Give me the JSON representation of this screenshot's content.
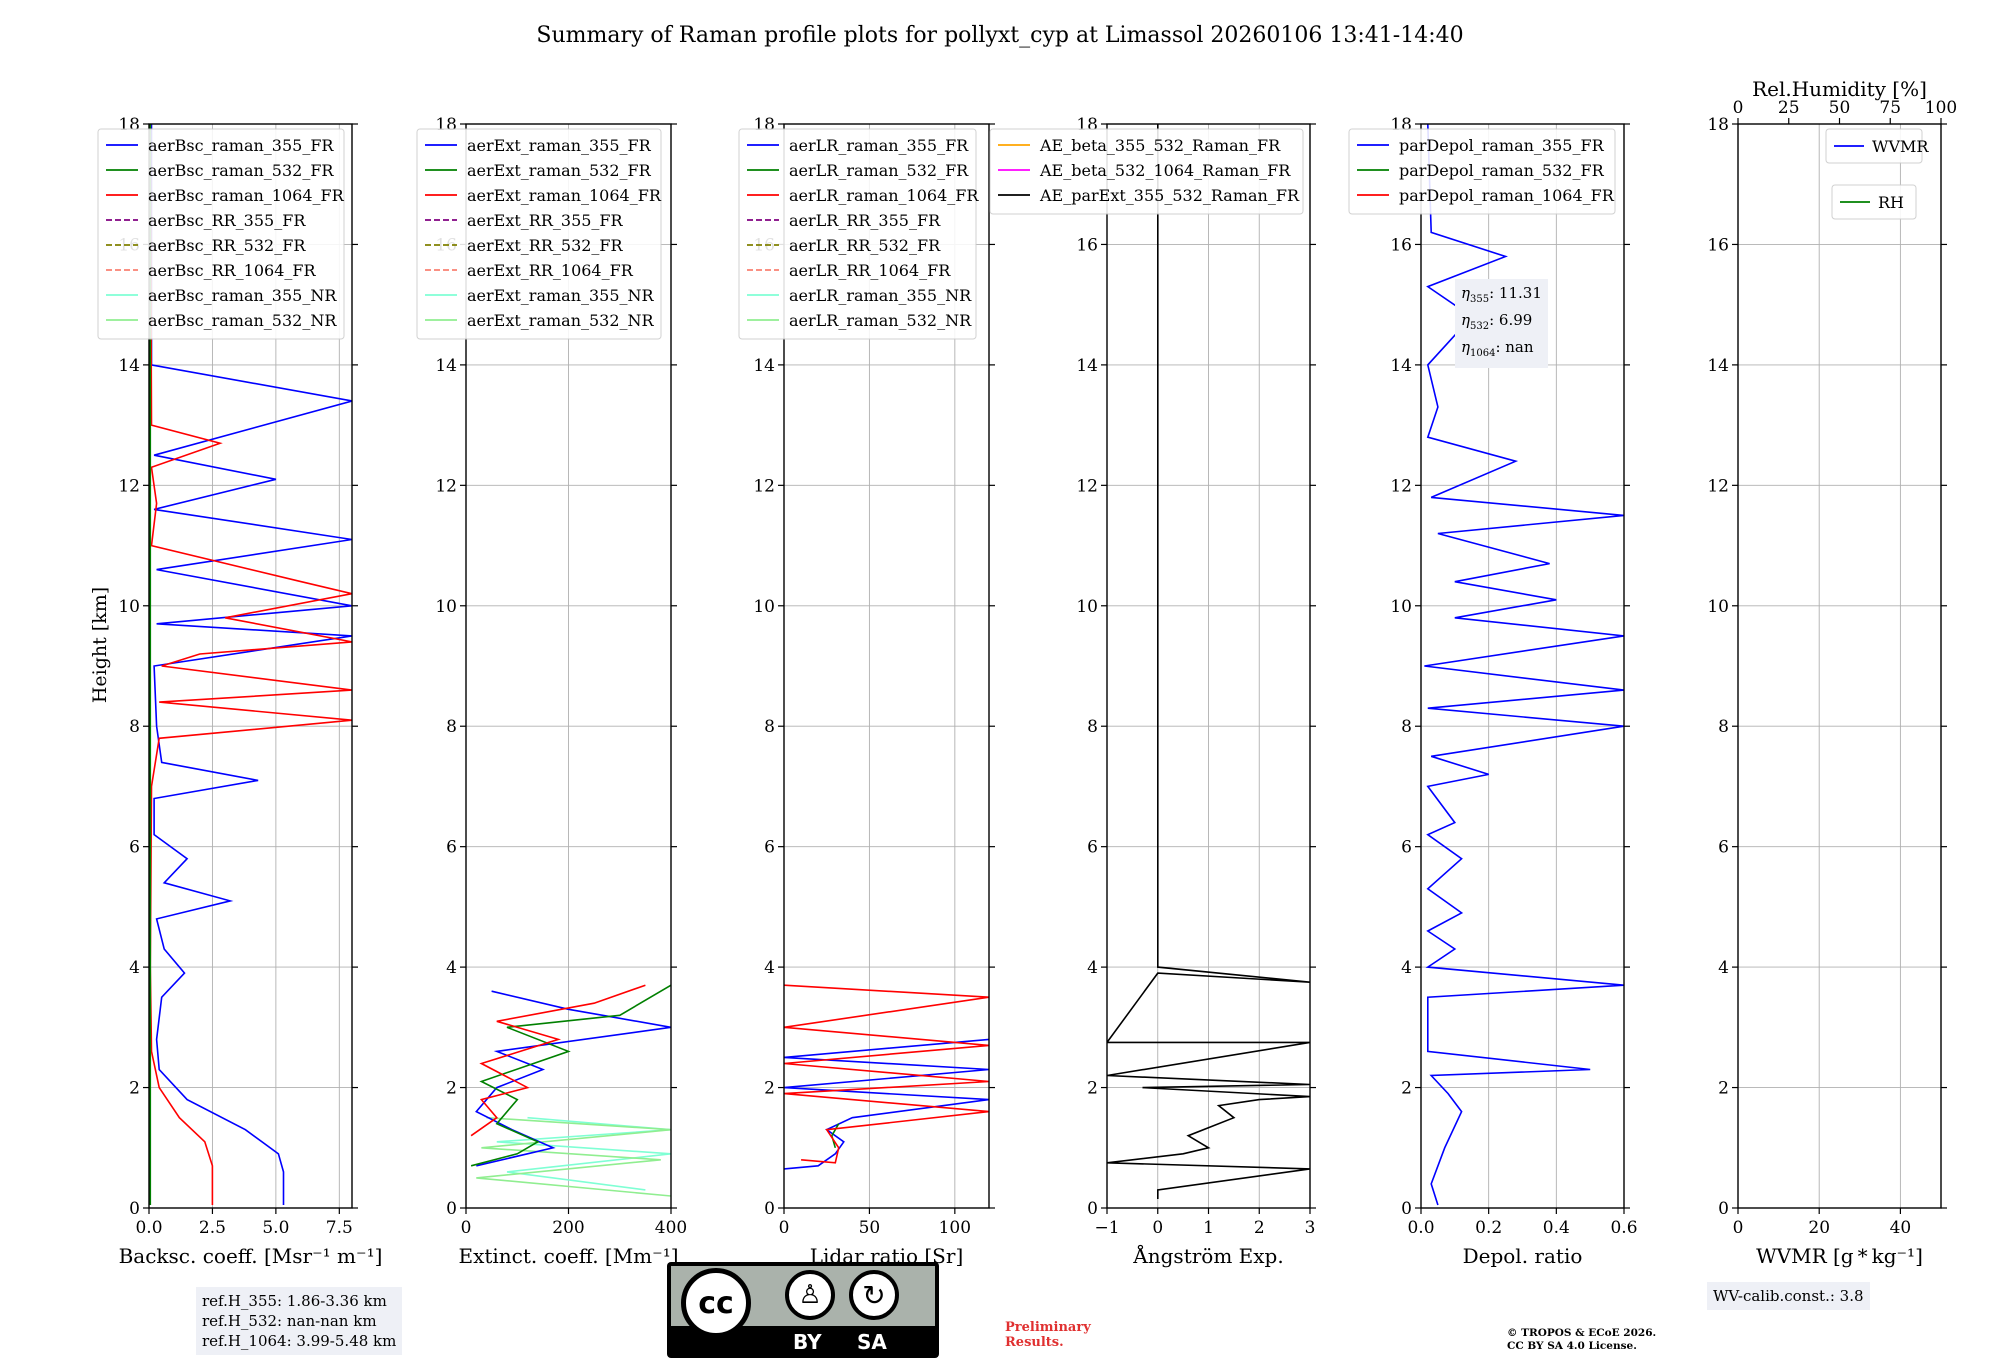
{
  "figure_title": "Summary of Raman profile plots for pollyxt_cyp at Limassol 20260106 13:41-14:40",
  "y_axis_label": "Height [km]",
  "y_ticks": [
    "0",
    "2",
    "4",
    "6",
    "8",
    "10",
    "12",
    "14",
    "16",
    "18"
  ],
  "colors": {
    "blue": "#0000ff",
    "green": "#008000",
    "red": "#ff0000",
    "purple": "#800080",
    "olive": "#808000",
    "salmon": "#fa8072",
    "cyan": "#7fffd4",
    "lightgreen": "#90ee90",
    "orange": "#ffa500",
    "magenta": "#ff00ff",
    "black": "#000000"
  },
  "chart_data": [
    {
      "type": "line",
      "xlabel": "Backsc. coeff. [Msr⁻¹ m⁻¹]",
      "xlim": [
        0,
        8
      ],
      "ylim": [
        0,
        18
      ],
      "x_ticks": [
        "0.0",
        "2.5",
        "5.0",
        "7.5"
      ],
      "legend": [
        "aerBsc_raman_355_FR",
        "aerBsc_raman_532_FR",
        "aerBsc_raman_1064_FR",
        "aerBsc_RR_355_FR",
        "aerBsc_RR_532_FR",
        "aerBsc_RR_1064_FR",
        "aerBsc_raman_355_NR",
        "aerBsc_raman_532_NR"
      ],
      "series": [
        {
          "name": "aerBsc_raman_355_FR",
          "points": [
            [
              5.3,
              0.05
            ],
            [
              5.3,
              0.6
            ],
            [
              5.1,
              0.9
            ],
            [
              3.8,
              1.3
            ],
            [
              1.5,
              1.8
            ],
            [
              0.4,
              2.3
            ],
            [
              0.3,
              2.8
            ],
            [
              0.5,
              3.5
            ],
            [
              1.4,
              3.9
            ],
            [
              0.6,
              4.3
            ],
            [
              0.3,
              4.8
            ],
            [
              3.2,
              5.1
            ],
            [
              0.6,
              5.4
            ],
            [
              1.5,
              5.8
            ],
            [
              0.2,
              6.2
            ],
            [
              0.2,
              6.8
            ],
            [
              4.3,
              7.1
            ],
            [
              0.5,
              7.4
            ],
            [
              0.3,
              8.0
            ],
            [
              0.2,
              9.0
            ],
            [
              8,
              9.5
            ],
            [
              0.3,
              9.7
            ],
            [
              8,
              10.0
            ],
            [
              0.3,
              10.6
            ],
            [
              8,
              11.1
            ],
            [
              0.2,
              11.6
            ],
            [
              5,
              12.1
            ],
            [
              0.2,
              12.5
            ],
            [
              8,
              13.4
            ],
            [
              0.1,
              14.0
            ],
            [
              0.1,
              18.0
            ]
          ]
        },
        {
          "name": "aerBsc_raman_1064_FR",
          "points": [
            [
              2.5,
              0.05
            ],
            [
              2.5,
              0.7
            ],
            [
              2.2,
              1.1
            ],
            [
              1.2,
              1.5
            ],
            [
              0.4,
              2.0
            ],
            [
              0.1,
              2.6
            ],
            [
              0.05,
              4.0
            ],
            [
              0.1,
              7.0
            ],
            [
              0.4,
              7.8
            ],
            [
              8,
              8.1
            ],
            [
              0.4,
              8.4
            ],
            [
              8,
              8.6
            ],
            [
              0.5,
              9.0
            ],
            [
              2,
              9.2
            ],
            [
              8,
              9.4
            ],
            [
              3,
              9.8
            ],
            [
              8,
              10.2
            ],
            [
              6,
              10.4
            ],
            [
              0.1,
              11.0
            ],
            [
              0.3,
              11.7
            ],
            [
              0.1,
              12.3
            ],
            [
              2.8,
              12.7
            ],
            [
              0.1,
              13.0
            ],
            [
              0.05,
              18.0
            ]
          ]
        },
        {
          "name": "aerBsc_raman_532_FR",
          "points": [
            [
              0.05,
              0.05
            ],
            [
              0.05,
              18.0
            ]
          ]
        }
      ]
    },
    {
      "type": "line",
      "xlabel": "Extinct. coeff. [Mm⁻¹]",
      "xlim": [
        0,
        400
      ],
      "ylim": [
        0,
        18
      ],
      "x_ticks": [
        "0",
        "200",
        "400"
      ],
      "legend": [
        "aerExt_raman_355_FR",
        "aerExt_raman_532_FR",
        "aerExt_raman_1064_FR",
        "aerExt_RR_355_FR",
        "aerExt_RR_532_FR",
        "aerExt_RR_1064_FR",
        "aerExt_raman_355_NR",
        "aerExt_raman_532_NR"
      ],
      "series": [
        {
          "name": "aerExt_raman_355_NR",
          "points": [
            [
              350,
              0.3
            ],
            [
              80,
              0.6
            ],
            [
              400,
              0.9
            ],
            [
              60,
              1.1
            ],
            [
              400,
              1.3
            ],
            [
              120,
              1.5
            ]
          ]
        },
        {
          "name": "aerExt_raman_532_NR",
          "points": [
            [
              400,
              0.2
            ],
            [
              20,
              0.5
            ],
            [
              380,
              0.8
            ],
            [
              30,
              1.0
            ],
            [
              400,
              1.3
            ],
            [
              40,
              1.5
            ]
          ]
        },
        {
          "name": "aerExt_raman_355_FR",
          "points": [
            [
              20,
              0.7
            ],
            [
              120,
              0.9
            ],
            [
              170,
              1.0
            ],
            [
              90,
              1.3
            ],
            [
              20,
              1.6
            ],
            [
              60,
              2.0
            ],
            [
              150,
              2.3
            ],
            [
              60,
              2.6
            ],
            [
              400,
              3.0
            ],
            [
              200,
              3.3
            ],
            [
              50,
              3.6
            ]
          ]
        },
        {
          "name": "aerExt_raman_532_FR",
          "points": [
            [
              10,
              0.7
            ],
            [
              100,
              0.9
            ],
            [
              140,
              1.1
            ],
            [
              60,
              1.4
            ],
            [
              100,
              1.8
            ],
            [
              30,
              2.1
            ],
            [
              200,
              2.6
            ],
            [
              80,
              3.0
            ],
            [
              300,
              3.2
            ],
            [
              400,
              3.7
            ]
          ]
        },
        {
          "name": "aerExt_raman_1064_FR",
          "points": [
            [
              10,
              1.2
            ],
            [
              60,
              1.5
            ],
            [
              30,
              1.8
            ],
            [
              120,
              2.0
            ],
            [
              30,
              2.4
            ],
            [
              180,
              2.8
            ],
            [
              60,
              3.1
            ],
            [
              250,
              3.4
            ],
            [
              350,
              3.7
            ]
          ]
        }
      ]
    },
    {
      "type": "line",
      "xlabel": "Lidar ratio [Sr]",
      "xlim": [
        0,
        120
      ],
      "ylim": [
        0,
        18
      ],
      "x_ticks": [
        "0",
        "50",
        "100"
      ],
      "legend": [
        "aerLR_raman_355_FR",
        "aerLR_raman_532_FR",
        "aerLR_raman_1064_FR",
        "aerLR_RR_355_FR",
        "aerLR_RR_532_FR",
        "aerLR_RR_1064_FR",
        "aerLR_raman_355_NR",
        "aerLR_raman_532_NR"
      ],
      "series": [
        {
          "name": "aerLR_raman_355_FR",
          "points": [
            [
              0,
              0.65
            ],
            [
              20,
              0.7
            ],
            [
              30,
              0.9
            ],
            [
              35,
              1.1
            ],
            [
              25,
              1.3
            ],
            [
              40,
              1.5
            ],
            [
              120,
              1.8
            ],
            [
              0,
              2.0
            ],
            [
              120,
              2.3
            ],
            [
              0,
              2.5
            ],
            [
              120,
              2.8
            ]
          ]
        },
        {
          "name": "aerLR_raman_532_FR",
          "points": [
            [
              30,
              1.0
            ],
            [
              28,
              1.2
            ],
            [
              32,
              1.4
            ]
          ]
        },
        {
          "name": "aerLR_raman_1064_FR",
          "points": [
            [
              10,
              0.8
            ],
            [
              30,
              0.75
            ],
            [
              32,
              1.0
            ],
            [
              25,
              1.3
            ],
            [
              120,
              1.6
            ],
            [
              0,
              1.9
            ],
            [
              120,
              2.1
            ],
            [
              0,
              2.4
            ],
            [
              120,
              2.7
            ],
            [
              0,
              3.0
            ],
            [
              120,
              3.5
            ],
            [
              0,
              3.7
            ]
          ]
        }
      ]
    },
    {
      "type": "line",
      "xlabel": "Ångström Exp.",
      "xlim": [
        -1,
        3
      ],
      "ylim": [
        0,
        18
      ],
      "x_ticks": [
        "−1",
        "0",
        "1",
        "2",
        "3"
      ],
      "legend": [
        "AE_beta_355_532_Raman_FR",
        "AE_beta_532_1064_Raman_FR",
        "AE_parExt_355_532_Raman_FR"
      ],
      "series": [
        {
          "name": "AE_parExt_355_532_Raman_FR",
          "points": [
            [
              0,
              0.15
            ],
            [
              0,
              0.3
            ],
            [
              3,
              0.65
            ],
            [
              -1,
              0.75
            ],
            [
              0.5,
              0.9
            ],
            [
              1,
              1.0
            ],
            [
              0.6,
              1.2
            ],
            [
              1.5,
              1.5
            ],
            [
              1.2,
              1.7
            ],
            [
              2,
              1.8
            ],
            [
              3,
              1.85
            ],
            [
              -0.3,
              2.0
            ],
            [
              3,
              2.05
            ],
            [
              -1,
              2.2
            ],
            [
              3,
              2.75
            ],
            [
              -1,
              2.75
            ],
            [
              0,
              3.9
            ],
            [
              3,
              3.75
            ],
            [
              0,
              4.0
            ],
            [
              0,
              18.0
            ]
          ]
        }
      ]
    },
    {
      "type": "line",
      "xlabel": "Depol. ratio",
      "xlim": [
        0,
        0.6
      ],
      "ylim": [
        0,
        18
      ],
      "x_ticks": [
        "0.0",
        "0.2",
        "0.4",
        "0.6"
      ],
      "legend": [
        "parDepol_raman_355_FR",
        "parDepol_raman_532_FR",
        "parDepol_raman_1064_FR"
      ],
      "series": [
        {
          "name": "parDepol_raman_355_FR",
          "points": [
            [
              0.05,
              0.05
            ],
            [
              0.03,
              0.4
            ],
            [
              0.07,
              1.0
            ],
            [
              0.12,
              1.6
            ],
            [
              0.08,
              1.9
            ],
            [
              0.03,
              2.2
            ],
            [
              0.5,
              2.3
            ],
            [
              0.02,
              2.6
            ],
            [
              0.02,
              3.5
            ],
            [
              0.6,
              3.7
            ],
            [
              0.02,
              4.0
            ],
            [
              0.1,
              4.3
            ],
            [
              0.02,
              4.6
            ],
            [
              0.12,
              4.9
            ],
            [
              0.02,
              5.3
            ],
            [
              0.12,
              5.8
            ],
            [
              0.02,
              6.2
            ],
            [
              0.1,
              6.4
            ],
            [
              0.02,
              7.0
            ],
            [
              0.2,
              7.2
            ],
            [
              0.03,
              7.5
            ],
            [
              0.6,
              8.0
            ],
            [
              0.02,
              8.3
            ],
            [
              0.6,
              8.6
            ],
            [
              0.01,
              9.0
            ],
            [
              0.6,
              9.5
            ],
            [
              0.1,
              9.8
            ],
            [
              0.4,
              10.1
            ],
            [
              0.1,
              10.4
            ],
            [
              0.38,
              10.7
            ],
            [
              0.05,
              11.2
            ],
            [
              0.6,
              11.5
            ],
            [
              0.03,
              11.8
            ],
            [
              0.28,
              12.4
            ],
            [
              0.02,
              12.8
            ],
            [
              0.05,
              13.3
            ],
            [
              0.02,
              14.0
            ],
            [
              0.15,
              14.8
            ],
            [
              0.02,
              15.3
            ],
            [
              0.25,
              15.8
            ],
            [
              0.03,
              16.2
            ],
            [
              0.02,
              18.0
            ]
          ]
        }
      ]
    },
    {
      "type": "line",
      "xlabel": "WVMR [g * kg⁻¹]",
      "xlim": [
        0,
        50
      ],
      "ylim": [
        0,
        18
      ],
      "x_ticks": [
        "0",
        "20",
        "40"
      ],
      "top_xlabel": "Rel.Humidity [%]",
      "top_xlim": [
        0,
        100
      ],
      "top_x_ticks": [
        "0",
        "25",
        "50",
        "75",
        "100"
      ],
      "legend": [
        "WVMR",
        "RH"
      ],
      "series": []
    }
  ],
  "annotations": {
    "ref_heights": [
      "ref.H_355: 1.86-3.36 km",
      "ref.H_532: nan-nan km",
      "ref.H_1064: 3.99-5.48 km"
    ],
    "eta": [
      {
        "sub": "355",
        "val": ": 11.31"
      },
      {
        "sub": "532",
        "val": ": 6.99"
      },
      {
        "sub": "1064",
        "val": ": nan"
      }
    ],
    "wv_calib": "WV-calib.const.: 3.8",
    "preliminary": [
      "Preliminary",
      "Results."
    ],
    "copyright": [
      "© TROPOS & ECoE 2026.",
      "CC BY SA 4.0 License."
    ],
    "license_badge": {
      "cc": "cc",
      "by": "BY",
      "sa": "SA"
    }
  }
}
